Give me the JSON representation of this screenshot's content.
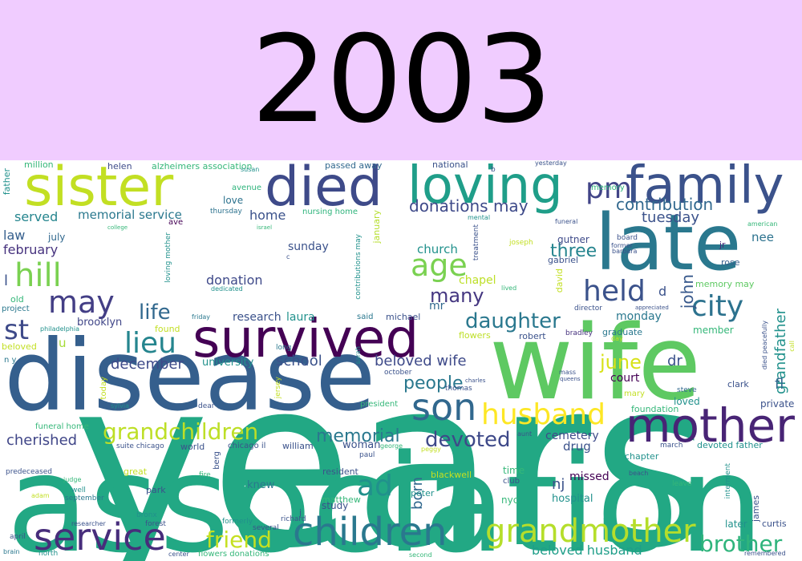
{
  "title": "2003",
  "words": [
    {
      "text": "years",
      "color": "#22a884"
    },
    {
      "text": "association",
      "color": "#22a884"
    },
    {
      "text": "disease",
      "color": "#355f8d"
    },
    {
      "text": "wife",
      "color": "#5ec962"
    },
    {
      "text": "late",
      "color": "#2a788e"
    },
    {
      "text": "survived",
      "color": "#440154"
    },
    {
      "text": "sister",
      "color": "#c2df23"
    },
    {
      "text": "died",
      "color": "#3e4a89"
    },
    {
      "text": "loving",
      "color": "#1f9e89"
    },
    {
      "text": "family",
      "color": "#3b528b"
    },
    {
      "text": "mother",
      "color": "#482475"
    },
    {
      "text": "children",
      "color": "#2a788e"
    },
    {
      "text": "grandmother",
      "color": "#b5de2b"
    },
    {
      "text": "service",
      "color": "#472d7b"
    },
    {
      "text": "husband",
      "color": "#fde725"
    },
    {
      "text": "son",
      "color": "#31688e"
    },
    {
      "text": "city",
      "color": "#2c728e"
    },
    {
      "text": "pm",
      "color": "#414487"
    },
    {
      "text": "hill",
      "color": "#7ad151"
    },
    {
      "text": "held",
      "color": "#3b528b"
    },
    {
      "text": "may",
      "color": "#433e85"
    },
    {
      "text": "lieu",
      "color": "#25858e"
    },
    {
      "text": "age",
      "color": "#7ad151"
    },
    {
      "text": "ad",
      "color": "#21918c"
    },
    {
      "text": "grandchildren",
      "color": "#bddf26"
    },
    {
      "text": "st",
      "color": "#3e4a89"
    },
    {
      "text": "daughter",
      "color": "#2a788e"
    },
    {
      "text": "brother",
      "color": "#2fb47c"
    },
    {
      "text": "devoted",
      "color": "#3e4989"
    },
    {
      "text": "friend",
      "color": "#c5e021"
    },
    {
      "text": "memorial",
      "color": "#2a788e"
    },
    {
      "text": "contribution",
      "color": "#31688e"
    },
    {
      "text": "donations may",
      "color": "#3e4a89"
    },
    {
      "text": "life",
      "color": "#31688e"
    },
    {
      "text": "many",
      "color": "#453781"
    },
    {
      "text": "june",
      "color": "#d8e219"
    },
    {
      "text": "people",
      "color": "#2a788e"
    },
    {
      "text": "three",
      "color": "#25848e"
    },
    {
      "text": "tuesday",
      "color": "#3b528b"
    },
    {
      "text": "john",
      "color": "#38598c"
    },
    {
      "text": "grandfather",
      "color": "#21918c"
    },
    {
      "text": "beloved wife",
      "color": "#3e4a89"
    },
    {
      "text": "cherished",
      "color": "#404688"
    },
    {
      "text": "december",
      "color": "#3e4a89"
    },
    {
      "text": "school",
      "color": "#3b528b"
    },
    {
      "text": "nj",
      "color": "#3b528b"
    },
    {
      "text": "born",
      "color": "#31688e"
    },
    {
      "text": "beloved husband",
      "color": "#1f9e89"
    },
    {
      "text": "served",
      "color": "#25858e"
    },
    {
      "text": "memorial service",
      "color": "#2a788e"
    },
    {
      "text": "home",
      "color": "#3b528b"
    },
    {
      "text": "law",
      "color": "#355f8d"
    },
    {
      "text": "february",
      "color": "#46327e"
    },
    {
      "text": "donation",
      "color": "#3e4989"
    },
    {
      "text": "church",
      "color": "#21918c"
    },
    {
      "text": "chapel",
      "color": "#bddf26"
    },
    {
      "text": "mr",
      "color": "#31688e"
    },
    {
      "text": "dr",
      "color": "#3b528b"
    },
    {
      "text": "fl",
      "color": "#31688e"
    },
    {
      "text": "nee",
      "color": "#2c728e"
    },
    {
      "text": "monday",
      "color": "#2a788e"
    },
    {
      "text": "court",
      "color": "#440154"
    },
    {
      "text": "cemetery",
      "color": "#3e4a89"
    },
    {
      "text": "drug",
      "color": "#3b528b"
    },
    {
      "text": "woman",
      "color": "#3b528b"
    },
    {
      "text": "hospital",
      "color": "#21918c"
    },
    {
      "text": "missed",
      "color": "#440154"
    },
    {
      "text": "knew",
      "color": "#2a788e"
    },
    {
      "text": "study",
      "color": "#3b528b"
    },
    {
      "text": "research",
      "color": "#3b528b"
    },
    {
      "text": "laura",
      "color": "#21918c"
    },
    {
      "text": "brooklyn",
      "color": "#404688"
    },
    {
      "text": "university",
      "color": "#21918c"
    },
    {
      "text": "u",
      "color": "#a5db36"
    },
    {
      "text": "helen",
      "color": "#3e4a89"
    },
    {
      "text": "million",
      "color": "#35b779"
    },
    {
      "text": "alzheimers association",
      "color": "#35b779"
    },
    {
      "text": "passed away",
      "color": "#31688e"
    },
    {
      "text": "national",
      "color": "#3b528b"
    },
    {
      "text": "memory",
      "color": "#2fb47c"
    },
    {
      "text": "love",
      "color": "#2c728e"
    },
    {
      "text": "thursday",
      "color": "#2c728e"
    },
    {
      "text": "avenue",
      "color": "#2fb47c"
    },
    {
      "text": "nursing home",
      "color": "#2fb47c"
    },
    {
      "text": "sunday",
      "color": "#3b528b"
    },
    {
      "text": "january",
      "color": "#b5de2b"
    },
    {
      "text": "old",
      "color": "#35b779"
    },
    {
      "text": "project",
      "color": "#2a788e"
    },
    {
      "text": "july",
      "color": "#31688e"
    },
    {
      "text": "gutner",
      "color": "#3e4a89"
    },
    {
      "text": "gabriel",
      "color": "#3b528b"
    },
    {
      "text": "rose",
      "color": "#355f8d"
    },
    {
      "text": "jr",
      "color": "#482878"
    },
    {
      "text": "memory may",
      "color": "#5ec962"
    },
    {
      "text": "member",
      "color": "#35b779"
    },
    {
      "text": "graduate",
      "color": "#2a788e"
    },
    {
      "text": "bradley",
      "color": "#46327e"
    },
    {
      "text": "robert",
      "color": "#3b528b"
    },
    {
      "text": "flowers",
      "color": "#bddf26"
    },
    {
      "text": "michael",
      "color": "#3b528b"
    },
    {
      "text": "said",
      "color": "#2a788e"
    },
    {
      "text": "found",
      "color": "#c2df23"
    },
    {
      "text": "beloved",
      "color": "#c2df23"
    },
    {
      "text": "philadelphia",
      "color": "#21918c"
    },
    {
      "text": "friday",
      "color": "#2a788e"
    },
    {
      "text": "long",
      "color": "#2a788e"
    },
    {
      "text": "mary",
      "color": "#c2df23"
    },
    {
      "text": "loved",
      "color": "#21918c"
    },
    {
      "text": "foundation",
      "color": "#35b779"
    },
    {
      "text": "private",
      "color": "#3b528b"
    },
    {
      "text": "clark",
      "color": "#3b528b"
    },
    {
      "text": "steve",
      "color": "#31688e"
    },
    {
      "text": "chapter",
      "color": "#21918c"
    },
    {
      "text": "devoted father",
      "color": "#21918c"
    },
    {
      "text": "march",
      "color": "#3b528b"
    },
    {
      "text": "time",
      "color": "#35b779"
    },
    {
      "text": "club",
      "color": "#3b528b"
    },
    {
      "text": "nyc",
      "color": "#35b779"
    },
    {
      "text": "president",
      "color": "#35b779"
    },
    {
      "text": "funeral home",
      "color": "#35b779"
    },
    {
      "text": "william",
      "color": "#3b528b"
    },
    {
      "text": "world",
      "color": "#3b528b"
    },
    {
      "text": "chicago il",
      "color": "#3b528b"
    },
    {
      "text": "suite chicago",
      "color": "#3b528b"
    },
    {
      "text": "paul",
      "color": "#3b528b"
    },
    {
      "text": "resident",
      "color": "#3b528b"
    },
    {
      "text": "blackwell",
      "color": "#c5e021"
    },
    {
      "text": "peter",
      "color": "#21918c"
    },
    {
      "text": "matthew",
      "color": "#35b779"
    },
    {
      "text": "judge",
      "color": "#35b779"
    },
    {
      "text": "predeceased",
      "color": "#3b528b"
    },
    {
      "text": "great",
      "color": "#c2df23"
    },
    {
      "text": "park",
      "color": "#3b528b"
    },
    {
      "text": "well",
      "color": "#21918c"
    },
    {
      "text": "september",
      "color": "#2a788e"
    },
    {
      "text": "adam",
      "color": "#c2df23"
    },
    {
      "text": "bronx",
      "color": "#21918c"
    },
    {
      "text": "forest",
      "color": "#3b528b"
    },
    {
      "text": "researcher",
      "color": "#3b528b"
    },
    {
      "text": "april",
      "color": "#3b528b"
    },
    {
      "text": "brain",
      "color": "#2a788e"
    },
    {
      "text": "north",
      "color": "#21918c"
    },
    {
      "text": "center",
      "color": "#3b528b"
    },
    {
      "text": "flowers donations",
      "color": "#35b779"
    },
    {
      "text": "second",
      "color": "#35b779"
    },
    {
      "text": "several",
      "color": "#3b528b"
    },
    {
      "text": "richard",
      "color": "#3b528b"
    },
    {
      "text": "formerly",
      "color": "#21918c"
    },
    {
      "text": "j",
      "color": "#3b528b"
    },
    {
      "text": "later",
      "color": "#21918c"
    },
    {
      "text": "curtis",
      "color": "#3b528b"
    },
    {
      "text": "remembered",
      "color": "#3b528b"
    },
    {
      "text": "interment",
      "color": "#21918c"
    },
    {
      "text": "james",
      "color": "#3b528b"
    },
    {
      "text": "leave",
      "color": "#35b779"
    },
    {
      "text": "beach",
      "color": "#3b528b"
    },
    {
      "text": "aunt",
      "color": "#3b528b"
    },
    {
      "text": "peggy",
      "color": "#c2df23"
    },
    {
      "text": "george",
      "color": "#35b779"
    },
    {
      "text": "thomas",
      "color": "#3b528b"
    },
    {
      "text": "charles",
      "color": "#3b528b"
    },
    {
      "text": "october",
      "color": "#3b528b"
    },
    {
      "text": "queens",
      "color": "#3b528b"
    },
    {
      "text": "mass",
      "color": "#3b528b"
    },
    {
      "text": "sarah",
      "color": "#21918c"
    },
    {
      "text": "jersey",
      "color": "#c2df23"
    },
    {
      "text": "today",
      "color": "#c2df23"
    },
    {
      "text": "sylvia",
      "color": "#21918c"
    },
    {
      "text": "dear",
      "color": "#3b528b"
    },
    {
      "text": "n y",
      "color": "#2a788e"
    },
    {
      "text": "lived",
      "color": "#35b779"
    },
    {
      "text": "mental",
      "color": "#21918c"
    },
    {
      "text": "joseph",
      "color": "#c2df23"
    },
    {
      "text": "treatment",
      "color": "#3b528b"
    },
    {
      "text": "funeral",
      "color": "#3b528b"
    },
    {
      "text": "board",
      "color": "#3b528b"
    },
    {
      "text": "former",
      "color": "#3b528b"
    },
    {
      "text": "barbara",
      "color": "#3b528b"
    },
    {
      "text": "director",
      "color": "#3b528b"
    },
    {
      "text": "appreciated",
      "color": "#3b528b"
    },
    {
      "text": "day",
      "color": "#c2df23"
    },
    {
      "text": "call",
      "color": "#c2df23"
    },
    {
      "text": "died peacefully",
      "color": "#3b528b"
    },
    {
      "text": "american",
      "color": "#35b779"
    },
    {
      "text": "contributions may",
      "color": "#21918c"
    },
    {
      "text": "loving mother",
      "color": "#21918c"
    },
    {
      "text": "david",
      "color": "#c2df23"
    },
    {
      "text": "dedicated",
      "color": "#21918c"
    },
    {
      "text": "yesterday",
      "color": "#3b528b"
    },
    {
      "text": "susan",
      "color": "#21918c"
    },
    {
      "text": "israel",
      "color": "#35b779"
    },
    {
      "text": "college",
      "color": "#35b779"
    },
    {
      "text": "ave",
      "color": "#440154"
    },
    {
      "text": "father",
      "color": "#21918c"
    },
    {
      "text": "b",
      "color": "#3b528b"
    },
    {
      "text": "c",
      "color": "#3b528b"
    },
    {
      "text": "d",
      "color": "#3b528b"
    },
    {
      "text": "l",
      "color": "#3b528b"
    },
    {
      "text": "berg",
      "color": "#3b528b"
    },
    {
      "text": "fire",
      "color": "#35b779"
    }
  ]
}
